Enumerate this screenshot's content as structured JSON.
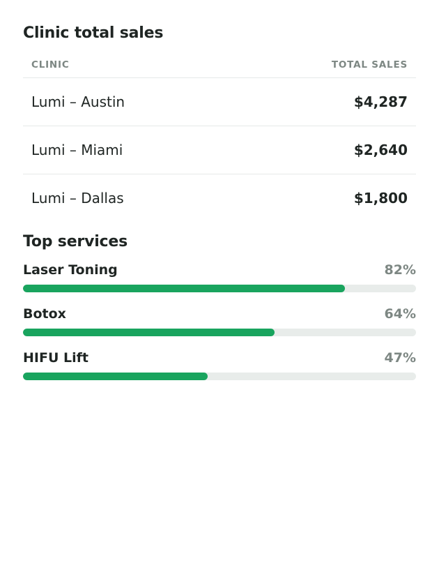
{
  "clinic_sales": {
    "title": "Clinic total sales",
    "columns": {
      "clinic": "CLINIC",
      "total_sales": "TOTAL SALES"
    },
    "rows": [
      {
        "clinic": "Lumi – Austin",
        "total": "$4,287"
      },
      {
        "clinic": "Lumi – Miami",
        "total": "$2,640"
      },
      {
        "clinic": "Lumi – Dallas",
        "total": "$1,800"
      }
    ]
  },
  "top_services": {
    "title": "Top services",
    "accent_color": "#19a45e",
    "track_color": "#e8ecea",
    "items": [
      {
        "label": "Laser Toning",
        "percent_label": "82%",
        "percent": 82
      },
      {
        "label": "Botox",
        "percent_label": "64%",
        "percent": 64
      },
      {
        "label": "HIFU Lift",
        "percent_label": "47%",
        "percent": 47
      }
    ]
  }
}
